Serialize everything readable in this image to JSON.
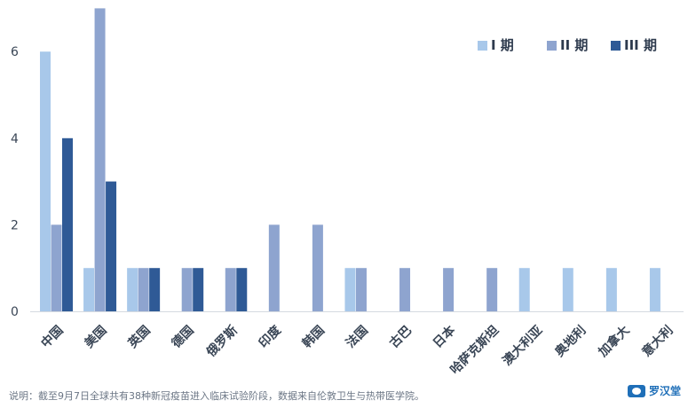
{
  "chart_data": {
    "type": "bar",
    "categories": [
      "中国",
      "美国",
      "英国",
      "德国",
      "俄罗斯",
      "印度",
      "韩国",
      "法国",
      "古巴",
      "日本",
      "哈萨克斯坦",
      "澳大利亚",
      "奥地利",
      "加拿大",
      "意大利"
    ],
    "series": [
      {
        "name": "I 期",
        "color": "#a8c8ea",
        "values": [
          6,
          1,
          1,
          0,
          0,
          0,
          0,
          1,
          0,
          0,
          0,
          1,
          1,
          1,
          1
        ]
      },
      {
        "name": "II 期",
        "color": "#8ea4cf",
        "values": [
          2,
          7,
          1,
          1,
          1,
          2,
          2,
          1,
          1,
          1,
          1,
          0,
          0,
          0,
          0
        ]
      },
      {
        "name": "III 期",
        "color": "#2f5a96",
        "values": [
          4,
          3,
          1,
          1,
          1,
          0,
          0,
          0,
          0,
          0,
          0,
          0,
          0,
          0,
          0
        ]
      }
    ],
    "y_ticks": [
      "0",
      "2",
      "4",
      "6"
    ],
    "ylim": [
      0,
      7
    ],
    "legend_position": "top-right",
    "grid": false
  },
  "footnote": "说明：截至9月7日全球共有38种新冠疫苗进入临床试验阶段，数据来自伦敦卫生与热带医学院。",
  "logo_text": "罗汉堂"
}
